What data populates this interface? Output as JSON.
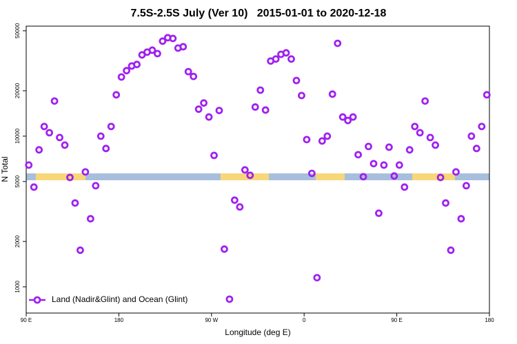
{
  "chart_data": {
    "type": "scatter",
    "title": "7.5S-2.5S July (Ver 10)   2015-01-01 to 2020-12-18",
    "xlabel": "Longitude (deg E)",
    "ylabel": "N Total",
    "log_y": true,
    "legend": "bottom-left",
    "xlim": [
      90,
      540
    ],
    "xticks": [
      {
        "value": 90,
        "label": "90 E"
      },
      180,
      {
        "value": 270,
        "label": "90 W"
      },
      {
        "value": 360,
        "label": "0"
      },
      {
        "value": 450,
        "label": "90 E"
      },
      {
        "value": 540,
        "label": "180"
      }
    ],
    "ylim": [
      670,
      53700
    ],
    "yticks": [
      1000,
      2000,
      5000,
      10000,
      20000,
      50000
    ],
    "series": [
      {
        "name": "Land (Nadir&Glint) and Ocean (Glint)",
        "color": "#a020f0",
        "x": [
          92.5,
          97.5,
          102.5,
          107.5,
          112.5,
          117.5,
          122.5,
          127.5,
          132.5,
          137.5,
          142.5,
          147.5,
          152.5,
          157.5,
          162.5,
          167.5,
          172.5,
          177.5,
          182.5,
          187.5,
          192.5,
          197.5,
          202.5,
          207.5,
          212.5,
          217.5,
          222.5,
          227.5,
          232.5,
          237.5,
          242.5,
          247.5,
          252.5,
          257.5,
          262.5,
          267.5,
          272.5,
          277.5,
          282.5,
          287.5,
          292.5,
          297.5,
          302.5,
          307.5,
          312.5,
          317.5,
          322.5,
          327.5,
          332.5,
          337.5,
          342.5,
          347.5,
          352.5,
          357.5,
          362.5,
          367.5,
          372.5,
          377.5,
          382.5,
          387.5,
          392.5,
          397.5,
          402.5,
          407.5,
          412.5,
          417.5,
          422.5,
          427.5,
          432.5,
          437.5,
          442.5,
          447.5,
          452.5,
          457.5,
          462.5,
          467.5,
          472.5,
          477.5,
          482.5,
          487.5,
          492.5,
          497.5,
          502.5,
          507.5,
          512.5,
          517.5,
          522.5,
          527.5,
          532.5,
          537.5
        ],
        "values": [
          6430,
          4590,
          8110,
          11590,
          10540,
          17100,
          9790,
          8720,
          5320,
          3600,
          1750,
          5790,
          2830,
          4690,
          10000,
          8280,
          11590,
          18800,
          24700,
          27200,
          29200,
          29900,
          34600,
          36100,
          37200,
          35300,
          42700,
          45000,
          44500,
          38400,
          39200,
          26800,
          24900,
          15100,
          16600,
          13400,
          7450,
          14800,
          1780,
          828,
          3760,
          3390,
          5970,
          5500,
          15600,
          20200,
          14900,
          31500,
          32500,
          34900,
          35700,
          32500,
          23400,
          18600,
          9490,
          5660,
          1150,
          9290,
          10000,
          19000,
          41300,
          13400,
          12700,
          13400,
          7530,
          5380,
          8540,
          6570,
          3080,
          6430,
          8450,
          5440,
          6430,
          4590,
          8110,
          11590,
          10540,
          17100,
          9790,
          8720,
          5320,
          3600,
          1750,
          5790,
          2830,
          4690,
          10000,
          8280,
          11590,
          18800
        ]
      }
    ]
  }
}
